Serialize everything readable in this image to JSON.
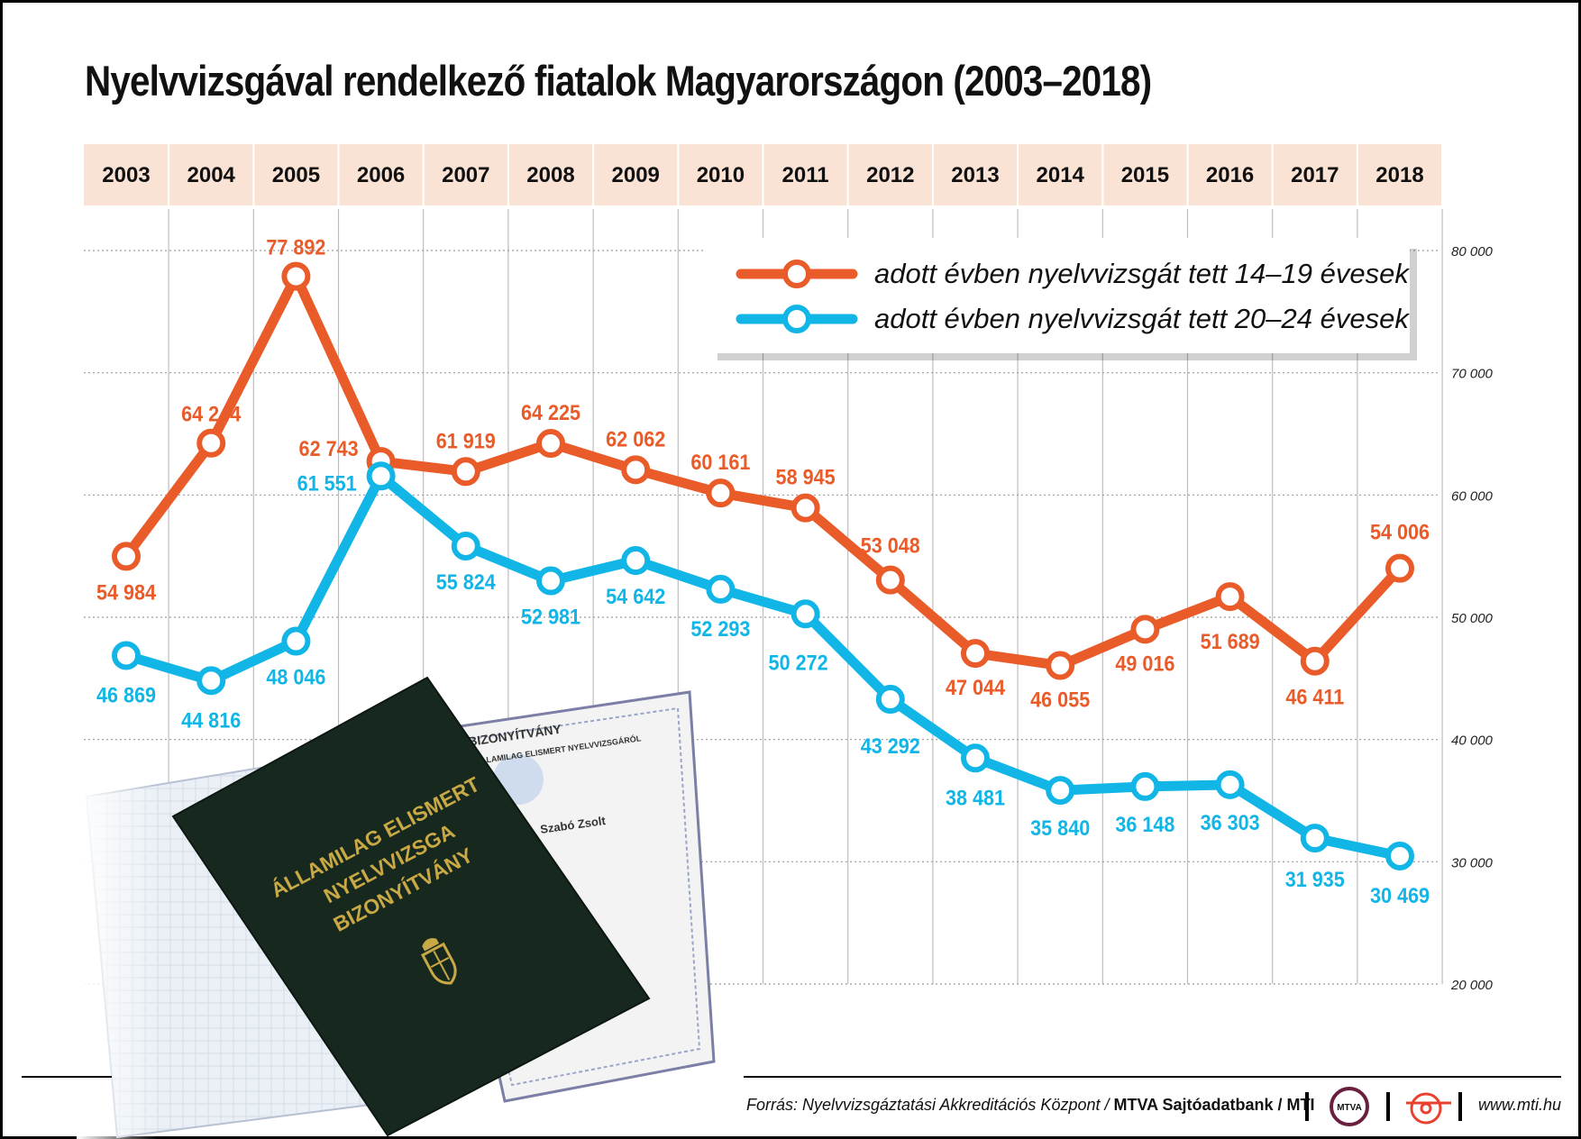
{
  "title": "Nyelvvizsgával rendelkező fiatalok Magyarországon (2003–2018)",
  "colors": {
    "series_orange": "#ea5b2a",
    "series_blue": "#12b6e6",
    "year_band": "#fae3d4",
    "grid": "#bdbdbd",
    "booklet": "#17291f"
  },
  "chart_data": {
    "type": "line",
    "title": "Nyelvvizsgával rendelkező fiatalok Magyarországon (2003–2018)",
    "x": [
      "2003",
      "2004",
      "2005",
      "2006",
      "2007",
      "2008",
      "2009",
      "2010",
      "2011",
      "2012",
      "2013",
      "2014",
      "2015",
      "2016",
      "2017",
      "2018"
    ],
    "series": [
      {
        "name": "adott évben nyelvvizsgát tett 14–19 évesek",
        "color": "#ea5b2a",
        "values": [
          54984,
          64244,
          77892,
          62743,
          61919,
          64225,
          62062,
          60161,
          58945,
          53048,
          47044,
          46055,
          49016,
          51689,
          46411,
          54006
        ],
        "labels": [
          "54 984",
          "64 244",
          "77 892",
          "62 743",
          "61 919",
          "64 225",
          "62 062",
          "60 161",
          "58 945",
          "53 048",
          "47 044",
          "46 055",
          "49 016",
          "51 689",
          "46 411",
          "54 006"
        ]
      },
      {
        "name": "adott évben nyelvvizsgát tett 20–24 évesek",
        "color": "#12b6e6",
        "values": [
          46869,
          44816,
          48046,
          61551,
          55824,
          52981,
          54642,
          52293,
          50272,
          43292,
          38481,
          35840,
          36148,
          36303,
          31935,
          30469
        ],
        "labels": [
          "46 869",
          "44 816",
          "48 046",
          "61 551",
          "55 824",
          "52 981",
          "54 642",
          "52 293",
          "50 272",
          "43 292",
          "38 481",
          "35 840",
          "36 148",
          "36 303",
          "31 935",
          "30 469"
        ]
      }
    ],
    "ylim": [
      20000,
      80000
    ],
    "yticks": [
      20000,
      30000,
      40000,
      50000,
      60000,
      70000,
      80000
    ],
    "ytick_labels": [
      "20 000",
      "30 000",
      "40 000",
      "50 000",
      "60 000",
      "70 000",
      "80 000"
    ],
    "yaxis_side": "right",
    "xaxis_position": "top",
    "grid": true,
    "legend_position": "top-right"
  },
  "image": {
    "booklet_text": [
      "ÁLLAMILAG ELISMERT",
      "NYELVVIZSGA",
      "BIZONYÍTVÁNY"
    ],
    "certificate_text": [
      "BIZONYÍTVÁNY",
      "ÁLLAMILAG ELISMERT NYELVVIZSGÁRÓL",
      "Szabó Zsolt"
    ]
  },
  "footer": {
    "source_label": "Forrás: Nyelvvizsgáztatási Akkreditációs Központ / ",
    "source_org": "MTVA Sajtóadatbank / MTI",
    "mtva_logo": "MTVA",
    "website": "www.mti.hu",
    "logo_icons": [
      "mtva-logo-icon",
      "mti-logo-icon"
    ]
  }
}
